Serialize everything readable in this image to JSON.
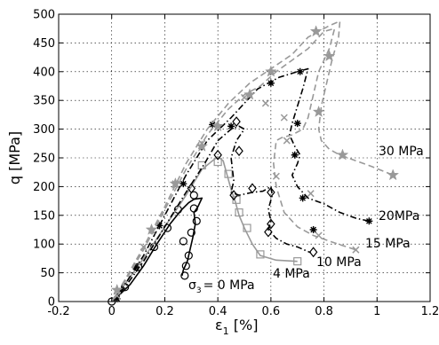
{
  "chart_data": {
    "type": "line",
    "title": "",
    "xlabel_main": "ε",
    "xlabel_sub": "1",
    "xlabel_tail": " [%]",
    "ylabel": "q [MPa]",
    "xlim": [
      -0.2,
      1.2
    ],
    "ylim": [
      0,
      500
    ],
    "xticks": [
      -0.2,
      0,
      0.2,
      0.4,
      0.6,
      0.8,
      1,
      1.2
    ],
    "xtick_labels": [
      "-0.2",
      "0",
      "0.2",
      "0.4",
      "0.6",
      "0.8",
      "1",
      "1.2"
    ],
    "yticks": [
      0,
      50,
      100,
      150,
      200,
      250,
      300,
      350,
      400,
      450,
      500
    ],
    "ytick_labels": [
      "0",
      "50",
      "100",
      "150",
      "200",
      "250",
      "300",
      "350",
      "400",
      "450",
      "500"
    ],
    "grid": true,
    "series": [
      {
        "line": "solid",
        "color": "#000000",
        "marker": "circle",
        "curve": [
          [
            0,
            0
          ],
          [
            0.03,
            12
          ],
          [
            0.07,
            30
          ],
          [
            0.12,
            62
          ],
          [
            0.17,
            100
          ],
          [
            0.22,
            135
          ],
          [
            0.26,
            158
          ],
          [
            0.29,
            172
          ],
          [
            0.31,
            178
          ],
          [
            0.34,
            180
          ],
          [
            0.325,
            165
          ],
          [
            0.31,
            155
          ],
          [
            0.315,
            135
          ],
          [
            0.305,
            110
          ],
          [
            0.295,
            90
          ],
          [
            0.285,
            70
          ],
          [
            0.27,
            55
          ],
          [
            0.265,
            45
          ]
        ],
        "markers": [
          [
            0,
            0
          ],
          [
            0.05,
            25
          ],
          [
            0.1,
            60
          ],
          [
            0.16,
            95
          ],
          [
            0.21,
            128
          ],
          [
            0.25,
            160
          ],
          [
            0.31,
            185
          ],
          [
            0.31,
            162
          ],
          [
            0.32,
            140
          ],
          [
            0.3,
            120
          ],
          [
            0.29,
            80
          ],
          [
            0.27,
            105
          ],
          [
            0.28,
            62
          ],
          [
            0.275,
            45
          ]
        ]
      },
      {
        "line": "solid",
        "color": "#999999",
        "marker": "square",
        "curve": [
          [
            0,
            0
          ],
          [
            0.05,
            30
          ],
          [
            0.12,
            75
          ],
          [
            0.2,
            130
          ],
          [
            0.28,
            185
          ],
          [
            0.34,
            230
          ],
          [
            0.38,
            245
          ],
          [
            0.4,
            252
          ],
          [
            0.42,
            245
          ],
          [
            0.435,
            220
          ],
          [
            0.45,
            195
          ],
          [
            0.465,
            175
          ],
          [
            0.48,
            150
          ],
          [
            0.5,
            128
          ],
          [
            0.53,
            100
          ],
          [
            0.56,
            80
          ],
          [
            0.62,
            72
          ],
          [
            0.7,
            70
          ]
        ],
        "markers": [
          [
            0.34,
            237
          ],
          [
            0.4,
            243
          ],
          [
            0.44,
            222
          ],
          [
            0.47,
            177
          ],
          [
            0.48,
            155
          ],
          [
            0.51,
            128
          ],
          [
            0.56,
            82
          ],
          [
            0.7,
            70
          ]
        ]
      },
      {
        "line": "dashdot",
        "color": "#000000",
        "marker": "diamond",
        "curve": [
          [
            0,
            0
          ],
          [
            0.05,
            25
          ],
          [
            0.12,
            70
          ],
          [
            0.2,
            130
          ],
          [
            0.28,
            190
          ],
          [
            0.35,
            240
          ],
          [
            0.4,
            280
          ],
          [
            0.45,
            300
          ],
          [
            0.48,
            305
          ],
          [
            0.5,
            300
          ],
          [
            0.47,
            280
          ],
          [
            0.45,
            250
          ],
          [
            0.46,
            210
          ],
          [
            0.45,
            190
          ],
          [
            0.48,
            185
          ],
          [
            0.53,
            190
          ],
          [
            0.57,
            192
          ],
          [
            0.6,
            200
          ],
          [
            0.605,
            185
          ],
          [
            0.59,
            160
          ],
          [
            0.6,
            140
          ],
          [
            0.59,
            125
          ],
          [
            0.62,
            110
          ],
          [
            0.66,
            100
          ],
          [
            0.7,
            95
          ],
          [
            0.75,
            85
          ]
        ],
        "markers": [
          [
            0.3,
            197
          ],
          [
            0.4,
            255
          ],
          [
            0.47,
            313
          ],
          [
            0.48,
            262
          ],
          [
            0.46,
            185
          ],
          [
            0.53,
            197
          ],
          [
            0.6,
            190
          ],
          [
            0.6,
            135
          ],
          [
            0.59,
            121
          ],
          [
            0.76,
            86
          ]
        ]
      },
      {
        "line": "dashdot",
        "color": "#000000",
        "marker": "asterisk",
        "curve": [
          [
            0,
            0
          ],
          [
            0.05,
            30
          ],
          [
            0.12,
            80
          ],
          [
            0.2,
            150
          ],
          [
            0.28,
            220
          ],
          [
            0.36,
            280
          ],
          [
            0.45,
            320
          ],
          [
            0.55,
            370
          ],
          [
            0.63,
            390
          ],
          [
            0.7,
            400
          ],
          [
            0.74,
            405
          ],
          [
            0.72,
            370
          ],
          [
            0.7,
            340
          ],
          [
            0.68,
            310
          ],
          [
            0.67,
            290
          ],
          [
            0.69,
            270
          ],
          [
            0.71,
            255
          ],
          [
            0.7,
            240
          ],
          [
            0.68,
            220
          ],
          [
            0.7,
            200
          ],
          [
            0.74,
            180
          ],
          [
            0.8,
            170
          ],
          [
            0.86,
            155
          ],
          [
            0.92,
            145
          ],
          [
            0.97,
            140
          ]
        ],
        "markers": [
          [
            0.02,
            5
          ],
          [
            0.09,
            60
          ],
          [
            0.18,
            132
          ],
          [
            0.27,
            205
          ],
          [
            0.38,
            308
          ],
          [
            0.45,
            305
          ],
          [
            0.6,
            380
          ],
          [
            0.71,
            400
          ],
          [
            0.7,
            310
          ],
          [
            0.69,
            255
          ],
          [
            0.72,
            180
          ],
          [
            0.76,
            125
          ],
          [
            0.97,
            140
          ]
        ]
      },
      {
        "line": "dashed",
        "color": "#999999",
        "marker": "x",
        "curve": [
          [
            0,
            0
          ],
          [
            0.05,
            35
          ],
          [
            0.12,
            90
          ],
          [
            0.2,
            160
          ],
          [
            0.28,
            230
          ],
          [
            0.36,
            290
          ],
          [
            0.44,
            335
          ],
          [
            0.5,
            360
          ],
          [
            0.56,
            375
          ],
          [
            0.62,
            400
          ],
          [
            0.68,
            420
          ],
          [
            0.74,
            440
          ],
          [
            0.8,
            470
          ],
          [
            0.84,
            475
          ],
          [
            0.82,
            440
          ],
          [
            0.78,
            400
          ],
          [
            0.76,
            360
          ],
          [
            0.74,
            320
          ],
          [
            0.72,
            300
          ],
          [
            0.68,
            290
          ],
          [
            0.64,
            285
          ],
          [
            0.62,
            280
          ],
          [
            0.61,
            240
          ],
          [
            0.62,
            200
          ],
          [
            0.65,
            155
          ],
          [
            0.7,
            130
          ],
          [
            0.76,
            115
          ],
          [
            0.84,
            102
          ],
          [
            0.92,
            90
          ]
        ],
        "markers": [
          [
            0.02,
            10
          ],
          [
            0.12,
            95
          ],
          [
            0.24,
            205
          ],
          [
            0.34,
            275
          ],
          [
            0.5,
            355
          ],
          [
            0.58,
            345
          ],
          [
            0.65,
            320
          ],
          [
            0.66,
            280
          ],
          [
            0.75,
            188
          ],
          [
            0.62,
            218
          ],
          [
            0.78,
            115
          ],
          [
            0.92,
            90
          ]
        ]
      },
      {
        "line": "dashed",
        "color": "#999999",
        "marker": "star",
        "curve": [
          [
            0,
            0
          ],
          [
            0.05,
            38
          ],
          [
            0.12,
            95
          ],
          [
            0.2,
            165
          ],
          [
            0.28,
            240
          ],
          [
            0.36,
            300
          ],
          [
            0.44,
            345
          ],
          [
            0.52,
            380
          ],
          [
            0.6,
            405
          ],
          [
            0.68,
            430
          ],
          [
            0.74,
            460
          ],
          [
            0.78,
            470
          ],
          [
            0.82,
            480
          ],
          [
            0.86,
            488
          ],
          [
            0.855,
            460
          ],
          [
            0.83,
            420
          ],
          [
            0.81,
            380
          ],
          [
            0.79,
            340
          ],
          [
            0.78,
            300
          ],
          [
            0.79,
            280
          ],
          [
            0.82,
            265
          ],
          [
            0.86,
            255
          ],
          [
            0.92,
            245
          ],
          [
            0.98,
            235
          ],
          [
            1.06,
            220
          ]
        ],
        "markers": [
          [
            0.02,
            20
          ],
          [
            0.15,
            125
          ],
          [
            0.24,
            205
          ],
          [
            0.34,
            270
          ],
          [
            0.4,
            305
          ],
          [
            0.52,
            360
          ],
          [
            0.6,
            400
          ],
          [
            0.77,
            470
          ],
          [
            0.82,
            427
          ],
          [
            0.78,
            330
          ],
          [
            0.87,
            255
          ],
          [
            1.06,
            220
          ]
        ]
      }
    ],
    "annotations": {
      "sigma3_symbol": "σ",
      "sigma3_sub": "3",
      "sigma3_text": "= 0 MPa",
      "label_4": "4 MPa",
      "label_10": "10 MPa",
      "label_15": "15 MPa",
      "label_20": "20MPa",
      "label_30": "30 MPa"
    }
  }
}
